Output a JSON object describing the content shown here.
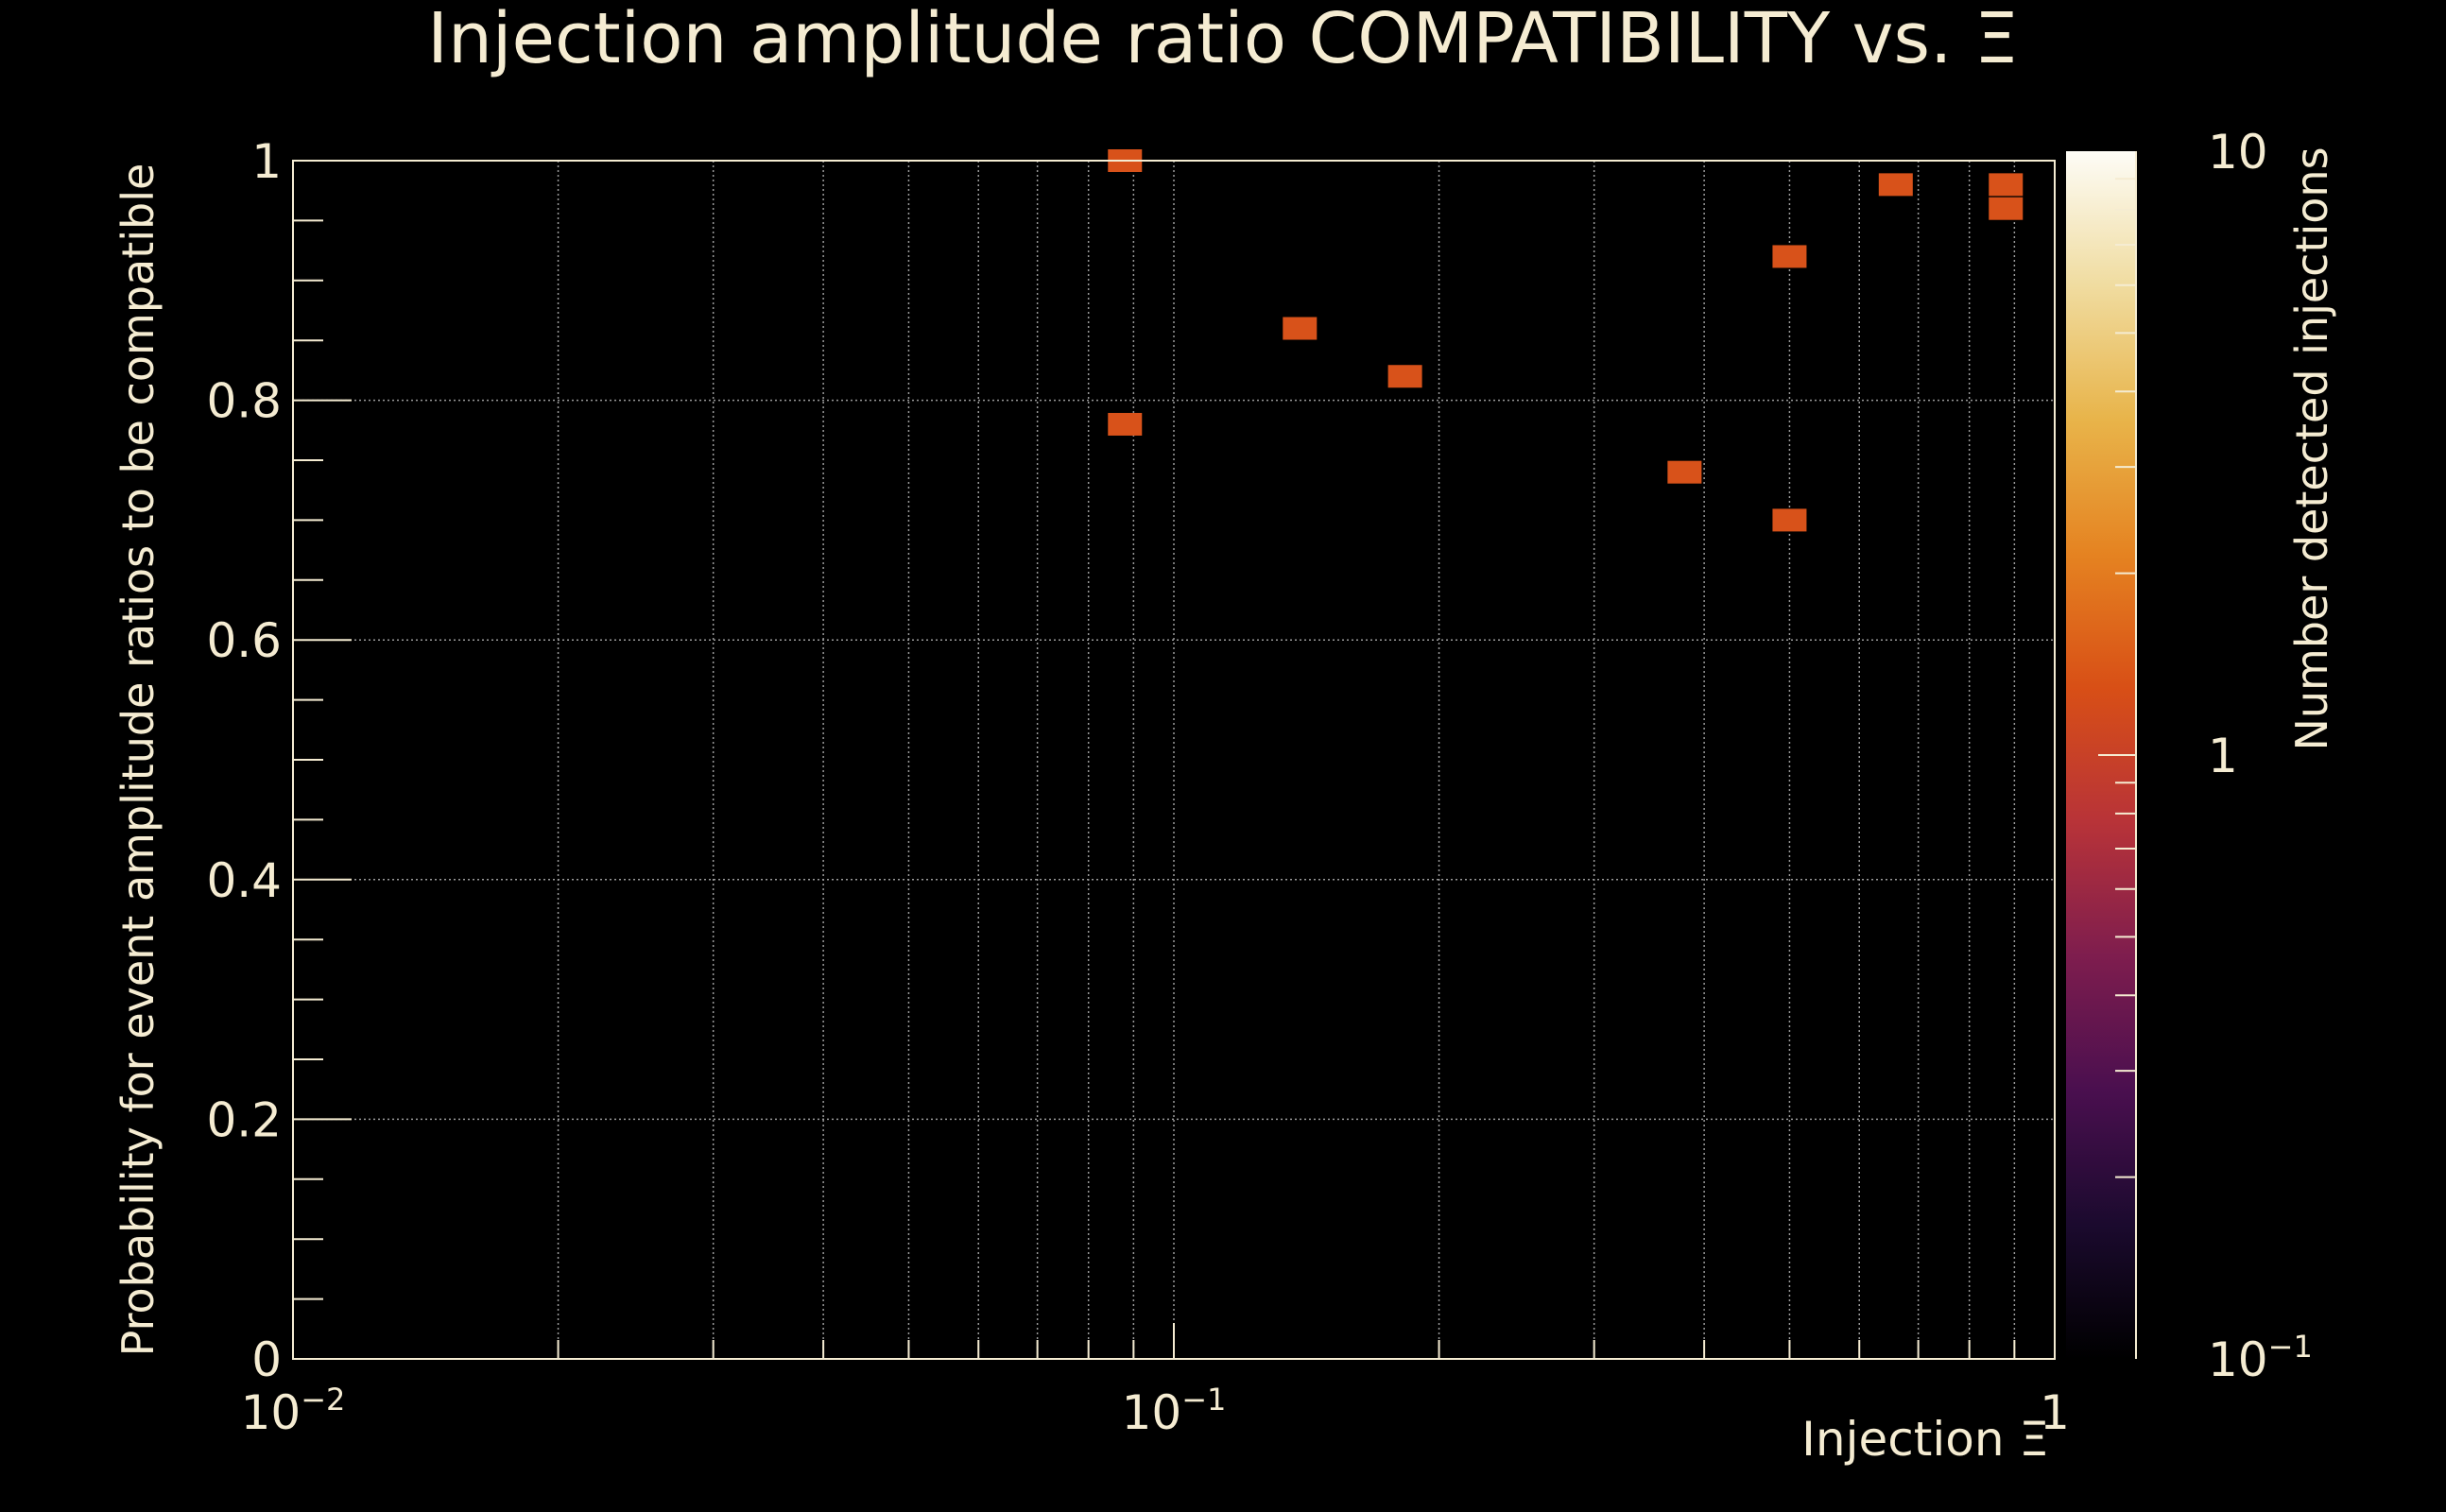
{
  "chart_data": {
    "type": "heatmap",
    "title": "Injection amplitude ratio COMPATIBILITY vs.  Ξ",
    "xlabel": "Injection Ξ",
    "ylabel": "Probability for event amplitude ratios to be compatible",
    "zlabel": "Number detected injections",
    "x_scale": "log",
    "xlim": [
      0.01,
      1
    ],
    "ylim": [
      0,
      1
    ],
    "zlim": [
      0.1,
      10
    ],
    "z_scale": "log",
    "grid": true,
    "x_ticks": [
      {
        "value": 0.01,
        "label": "10",
        "exp": "−2"
      },
      {
        "value": 0.1,
        "label": "10",
        "exp": "−1"
      },
      {
        "value": 1,
        "label": "1",
        "exp": ""
      }
    ],
    "y_ticks": [
      {
        "value": 0,
        "label": "0"
      },
      {
        "value": 0.2,
        "label": "0.2"
      },
      {
        "value": 0.4,
        "label": "0.4"
      },
      {
        "value": 0.6,
        "label": "0.6"
      },
      {
        "value": 0.8,
        "label": "0.8"
      },
      {
        "value": 1,
        "label": "1"
      }
    ],
    "z_ticks": [
      {
        "value": 10,
        "label": "10",
        "exp": ""
      },
      {
        "value": 1,
        "label": "1",
        "exp": ""
      },
      {
        "value": 0.1,
        "label": "10",
        "exp": "−1"
      }
    ],
    "points": [
      {
        "x": 0.088,
        "y": 1.0,
        "count": 1
      },
      {
        "x": 0.088,
        "y": 0.78,
        "count": 1
      },
      {
        "x": 0.139,
        "y": 0.86,
        "count": 1
      },
      {
        "x": 0.183,
        "y": 0.82,
        "count": 1
      },
      {
        "x": 0.38,
        "y": 0.74,
        "count": 1
      },
      {
        "x": 0.5,
        "y": 0.92,
        "count": 1
      },
      {
        "x": 0.5,
        "y": 0.7,
        "count": 1
      },
      {
        "x": 0.66,
        "y": 0.98,
        "count": 1
      },
      {
        "x": 0.88,
        "y": 0.98,
        "count": 1
      },
      {
        "x": 0.88,
        "y": 0.96,
        "count": 1
      }
    ],
    "colormap": [
      "#000000",
      "#1b0a2e",
      "#4a0f4f",
      "#7e1d4e",
      "#b83338",
      "#d84f16",
      "#e58321",
      "#e8b44a",
      "#f0dca0",
      "#fdfcf6"
    ],
    "marker_color": "#d8521a",
    "text_color": "#f5ecd2",
    "grid_color": "#9a9a9a"
  }
}
